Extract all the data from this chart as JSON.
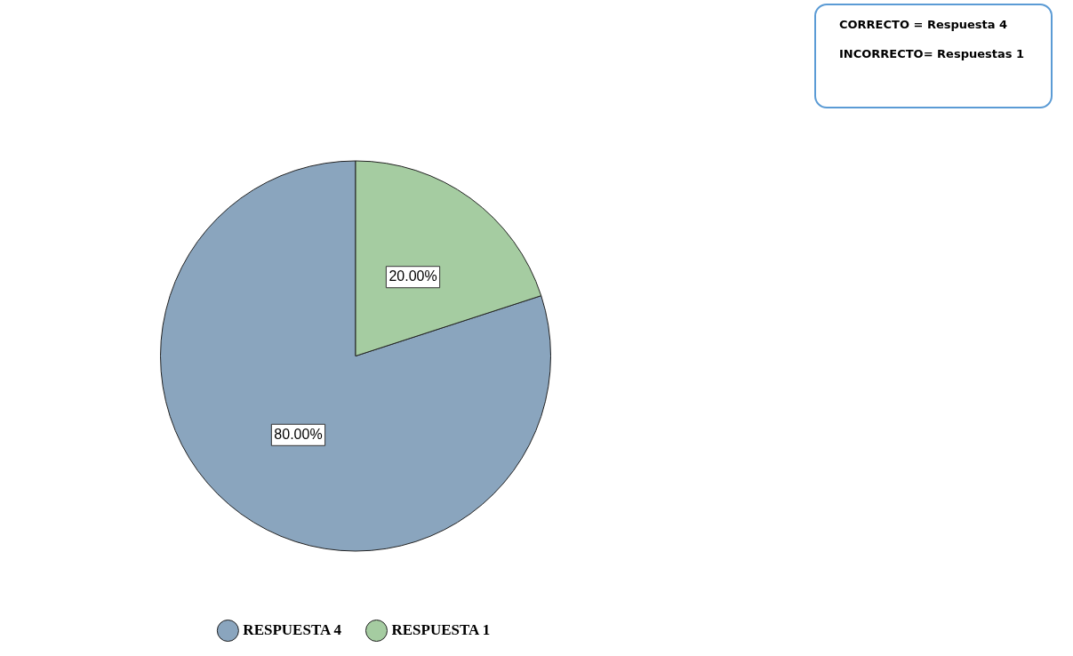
{
  "chart_data": {
    "type": "pie",
    "categories": [
      "RESPUESTA 4",
      "RESPUESTA 1"
    ],
    "values": [
      80,
      20
    ],
    "colors": [
      "#8aa5be",
      "#a5cca1"
    ],
    "value_labels": [
      "80.00%",
      "20.00%"
    ],
    "legend": "bottom",
    "annotations": [
      "CORRECTO = Respuesta 4",
      "INCORRECTO= Respuestas 1"
    ]
  }
}
